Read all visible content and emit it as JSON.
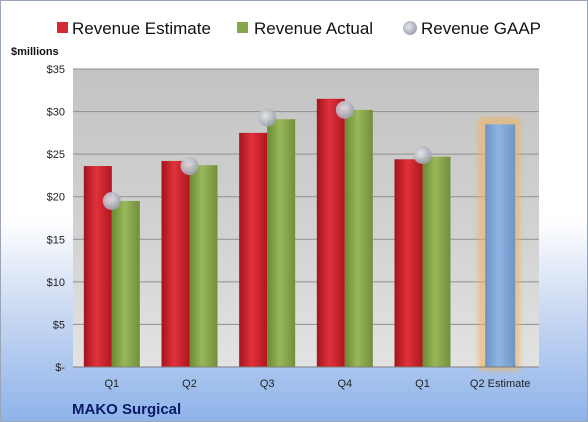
{
  "chart_data": {
    "type": "bar",
    "title": "",
    "ylabel": "$millions",
    "caption": "MAKO Surgical",
    "categories": [
      "Q1",
      "Q2",
      "Q3",
      "Q4",
      "Q1",
      "Q2 Estimate"
    ],
    "ylim": [
      0,
      35
    ],
    "yticks": [
      0,
      5,
      10,
      15,
      20,
      25,
      30,
      35
    ],
    "ytick_labels": [
      "$-",
      "$5",
      "$10",
      "$15",
      "$20",
      "$25",
      "$30",
      "$35"
    ],
    "grid": true,
    "legend_position": "top",
    "series": [
      {
        "name": "Revenue Estimate",
        "type": "bar",
        "color": "#c8202a",
        "values": [
          23.6,
          24.2,
          27.5,
          31.5,
          24.4,
          null
        ]
      },
      {
        "name": "Revenue Actual",
        "type": "bar",
        "color": "#7f9f45",
        "values": [
          19.5,
          23.7,
          29.1,
          30.2,
          24.7,
          null
        ]
      },
      {
        "name": "Revenue GAAP",
        "type": "marker",
        "color": "#b5b8c4",
        "values": [
          19.5,
          23.6,
          29.3,
          30.2,
          24.9,
          null
        ]
      },
      {
        "name": "",
        "type": "bar",
        "color": "#7ba3d6",
        "glow": "#f2b15a",
        "values": [
          null,
          null,
          null,
          null,
          null,
          28.5
        ]
      }
    ]
  }
}
